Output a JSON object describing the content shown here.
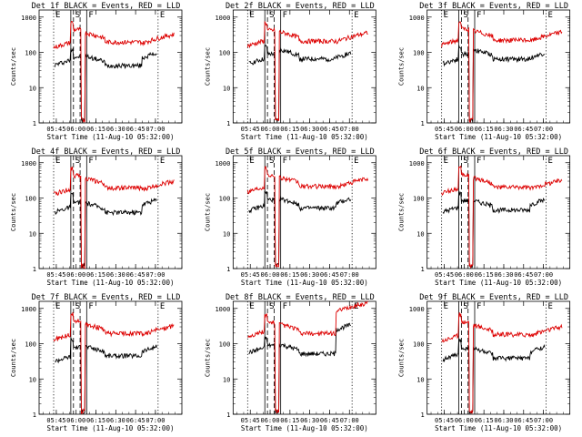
{
  "figure": {
    "title_template": "Det {n}f BLACK = Events, RED = LLD",
    "xlabel": "Start Time (11-Aug-10 05:32:00)",
    "ylabel": "Counts/sec",
    "x_ticks": [
      "05:45",
      "06:00",
      "06:15",
      "06:30",
      "06:45",
      "07:00"
    ],
    "y_ticks": [
      "1",
      "10",
      "100",
      "1000"
    ],
    "marker_labels": [
      "E",
      "S",
      "F",
      "E"
    ],
    "colors": {
      "events": "#000000",
      "lld": "#dd0000"
    }
  },
  "chart_data": [
    {
      "type": "line",
      "det": "1f",
      "title": "Det 1f BLACK = Events, RED = LLD",
      "xlabel": "Start Time (11-Aug-10 05:32:00)",
      "ylabel": "Counts/sec",
      "ylim": [
        1,
        1000
      ],
      "x_ticks": [
        "05:45",
        "06:00",
        "06:15",
        "06:30",
        "06:45",
        "07:00"
      ],
      "series": [
        {
          "name": "Events",
          "color": "#000000",
          "start": "05:44",
          "end": "07:01",
          "ref": {
            "level": 55,
            "feature": 75,
            "late": 65,
            "spike": 70
          }
        },
        {
          "name": "LLD",
          "color": "#dd0000",
          "start": "05:43",
          "end": "07:14",
          "ref": {
            "level": 170,
            "feature": 440,
            "late": 300,
            "spike": 180
          }
        }
      ],
      "markers": [
        {
          "label": "E",
          "time": "05:43",
          "style": "dotted"
        },
        {
          "label": "S",
          "time": "05:58",
          "style": "dashed"
        },
        {
          "label": "F",
          "time": "06:08",
          "style": "solid"
        },
        {
          "label": "E",
          "time": "07:02",
          "style": "dotted"
        }
      ]
    },
    {
      "type": "line",
      "det": "2f",
      "title": "Det 2f BLACK = Events, RED = LLD",
      "xlabel": "Start Time (11-Aug-10 05:32:00)",
      "ylabel": "Counts/sec",
      "ylim": [
        1,
        1000
      ],
      "x_ticks": [
        "05:45",
        "06:00",
        "06:15",
        "06:30",
        "06:45",
        "07:00"
      ],
      "series": [
        {
          "name": "Events",
          "color": "#000000",
          "start": "05:44",
          "end": "07:01",
          "ref": {
            "level": 60,
            "feature": 90,
            "late": 100,
            "spike": 70
          }
        },
        {
          "name": "LLD",
          "color": "#dd0000",
          "start": "05:43",
          "end": "07:14",
          "ref": {
            "level": 190,
            "feature": 420,
            "late": 320,
            "spike": 200
          }
        }
      ],
      "markers": [
        {
          "label": "E",
          "time": "05:43",
          "style": "dotted"
        },
        {
          "label": "S",
          "time": "05:58",
          "style": "dashed"
        },
        {
          "label": "F",
          "time": "06:08",
          "style": "solid"
        },
        {
          "label": "E",
          "time": "07:02",
          "style": "dotted"
        }
      ]
    },
    {
      "type": "line",
      "det": "3f",
      "title": "Det 3f BLACK = Events, RED = LLD",
      "xlabel": "Start Time (11-Aug-10 05:32:00)",
      "ylabel": "Counts/sec",
      "ylim": [
        1,
        1000
      ],
      "x_ticks": [
        "05:45",
        "06:00",
        "06:15",
        "06:30",
        "06:45",
        "07:00"
      ],
      "series": [
        {
          "name": "Events",
          "color": "#000000",
          "start": "05:44",
          "end": "07:01",
          "ref": {
            "level": 60,
            "feature": 90,
            "late": 100,
            "spike": 70
          }
        },
        {
          "name": "LLD",
          "color": "#dd0000",
          "start": "05:43",
          "end": "07:14",
          "ref": {
            "level": 200,
            "feature": 460,
            "late": 340,
            "spike": 210
          }
        }
      ],
      "markers": [
        {
          "label": "E",
          "time": "05:43",
          "style": "dotted"
        },
        {
          "label": "S",
          "time": "05:58",
          "style": "dashed"
        },
        {
          "label": "F",
          "time": "06:08",
          "style": "solid"
        },
        {
          "label": "E",
          "time": "07:02",
          "style": "dotted"
        }
      ]
    },
    {
      "type": "line",
      "det": "4f",
      "title": "Det 4f BLACK = Events, RED = LLD",
      "xlabel": "Start Time (11-Aug-10 05:32:00)",
      "ylabel": "Counts/sec",
      "ylim": [
        1,
        1000
      ],
      "x_ticks": [
        "05:45",
        "06:00",
        "06:15",
        "06:30",
        "06:45",
        "07:00"
      ],
      "series": [
        {
          "name": "Events",
          "color": "#000000",
          "start": "05:44",
          "end": "07:01",
          "ref": {
            "level": 50,
            "feature": 75,
            "late": 60,
            "spike": 65
          }
        },
        {
          "name": "LLD",
          "color": "#dd0000",
          "start": "05:43",
          "end": "07:14",
          "ref": {
            "level": 160,
            "feature": 430,
            "late": 300,
            "spike": 170
          }
        }
      ],
      "markers": [
        {
          "label": "E",
          "time": "05:43",
          "style": "dotted"
        },
        {
          "label": "S",
          "time": "05:58",
          "style": "dashed"
        },
        {
          "label": "F",
          "time": "06:08",
          "style": "solid"
        },
        {
          "label": "E",
          "time": "07:02",
          "style": "dotted"
        }
      ]
    },
    {
      "type": "line",
      "det": "5f",
      "title": "Det 5f BLACK = Events, RED = LLD",
      "xlabel": "Start Time (11-Aug-10 05:32:00)",
      "ylabel": "Counts/sec",
      "ylim": [
        1,
        1000
      ],
      "x_ticks": [
        "05:45",
        "06:00",
        "06:15",
        "06:30",
        "06:45",
        "07:00"
      ],
      "series": [
        {
          "name": "Events",
          "color": "#000000",
          "start": "05:44",
          "end": "07:01",
          "ref": {
            "level": 55,
            "feature": 90,
            "late": 80,
            "spike": 70
          }
        },
        {
          "name": "LLD",
          "color": "#dd0000",
          "start": "05:43",
          "end": "07:14",
          "ref": {
            "level": 190,
            "feature": 450,
            "late": 330,
            "spike": 200
          }
        }
      ],
      "markers": [
        {
          "label": "E",
          "time": "05:43",
          "style": "dotted"
        },
        {
          "label": "S",
          "time": "05:58",
          "style": "dashed"
        },
        {
          "label": "F",
          "time": "06:08",
          "style": "solid"
        },
        {
          "label": "E",
          "time": "07:02",
          "style": "dotted"
        }
      ]
    },
    {
      "type": "line",
      "det": "6f",
      "title": "Det 6f BLACK = Events, RED = LLD",
      "xlabel": "Start Time (11-Aug-10 05:32:00)",
      "ylabel": "Counts/sec",
      "ylim": [
        1,
        1000
      ],
      "x_ticks": [
        "05:45",
        "06:00",
        "06:15",
        "06:30",
        "06:45",
        "07:00"
      ],
      "series": [
        {
          "name": "Events",
          "color": "#000000",
          "start": "05:44",
          "end": "07:01",
          "ref": {
            "level": 50,
            "feature": 85,
            "late": 70,
            "spike": 65
          }
        },
        {
          "name": "LLD",
          "color": "#dd0000",
          "start": "05:43",
          "end": "07:14",
          "ref": {
            "level": 170,
            "feature": 440,
            "late": 310,
            "spike": 180
          }
        }
      ],
      "markers": [
        {
          "label": "E",
          "time": "05:43",
          "style": "dotted"
        },
        {
          "label": "S",
          "time": "05:58",
          "style": "dashed"
        },
        {
          "label": "F",
          "time": "06:08",
          "style": "solid"
        },
        {
          "label": "E",
          "time": "07:02",
          "style": "dotted"
        }
      ]
    },
    {
      "type": "line",
      "det": "7f",
      "title": "Det 7f BLACK = Events, RED = LLD",
      "xlabel": "Start Time (11-Aug-10 05:32:00)",
      "ylabel": "Counts/sec",
      "ylim": [
        1,
        1000
      ],
      "x_ticks": [
        "05:45",
        "06:00",
        "06:15",
        "06:30",
        "06:45",
        "07:00"
      ],
      "series": [
        {
          "name": "Events",
          "color": "#000000",
          "start": "05:44",
          "end": "07:01",
          "ref": {
            "level": 40,
            "feature": 80,
            "late": 70,
            "spike": 60
          }
        },
        {
          "name": "LLD",
          "color": "#dd0000",
          "start": "05:43",
          "end": "07:14",
          "ref": {
            "level": 160,
            "feature": 440,
            "late": 300,
            "spike": 180
          }
        }
      ],
      "markers": [
        {
          "label": "E",
          "time": "05:43",
          "style": "dotted"
        },
        {
          "label": "S",
          "time": "05:58",
          "style": "dashed"
        },
        {
          "label": "F",
          "time": "06:08",
          "style": "solid"
        },
        {
          "label": "E",
          "time": "07:02",
          "style": "dotted"
        }
      ]
    },
    {
      "type": "line",
      "det": "8f",
      "title": "Det 8f BLACK = Events, RED = LLD",
      "xlabel": "Start Time (11-Aug-10 05:32:00)",
      "ylabel": "Counts/sec",
      "ylim": [
        1,
        1000
      ],
      "x_ticks": [
        "05:45",
        "06:00",
        "06:15",
        "06:30",
        "06:45",
        "07:00"
      ],
      "series": [
        {
          "name": "Events",
          "color": "#000000",
          "start": "05:44",
          "end": "07:01",
          "ref": {
            "level": 70,
            "feature": 90,
            "late": 80,
            "spike": 250
          }
        },
        {
          "name": "LLD",
          "color": "#dd0000",
          "start": "05:43",
          "end": "07:14",
          "ref": {
            "level": 200,
            "feature": 400,
            "late": 300,
            "spike": 800
          }
        }
      ],
      "markers": [
        {
          "label": "E",
          "time": "05:43",
          "style": "dotted"
        },
        {
          "label": "S",
          "time": "05:58",
          "style": "dashed"
        },
        {
          "label": "F",
          "time": "06:08",
          "style": "solid"
        },
        {
          "label": "E",
          "time": "07:02",
          "style": "dotted"
        }
      ]
    },
    {
      "type": "line",
      "det": "9f",
      "title": "Det 9f BLACK = Events, RED = LLD",
      "xlabel": "Start Time (11-Aug-10 05:32:00)",
      "ylabel": "Counts/sec",
      "ylim": [
        1,
        1000
      ],
      "x_ticks": [
        "05:45",
        "06:00",
        "06:15",
        "06:30",
        "06:45",
        "07:00"
      ],
      "series": [
        {
          "name": "Events",
          "color": "#000000",
          "start": "05:44",
          "end": "07:01",
          "ref": {
            "level": 45,
            "feature": 75,
            "late": 60,
            "spike": 60
          }
        },
        {
          "name": "LLD",
          "color": "#dd0000",
          "start": "05:43",
          "end": "07:14",
          "ref": {
            "level": 150,
            "feature": 420,
            "late": 280,
            "spike": 170
          }
        }
      ],
      "markers": [
        {
          "label": "E",
          "time": "05:43",
          "style": "dotted"
        },
        {
          "label": "S",
          "time": "05:58",
          "style": "dashed"
        },
        {
          "label": "F",
          "time": "06:08",
          "style": "solid"
        },
        {
          "label": "E",
          "time": "07:02",
          "style": "dotted"
        }
      ]
    }
  ]
}
